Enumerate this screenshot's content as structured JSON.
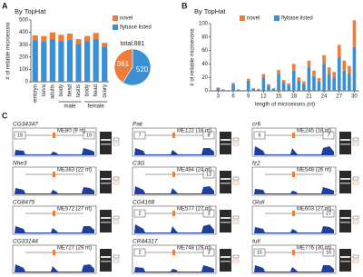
{
  "chart_data": [
    {
      "type": "bar",
      "panel": "A",
      "title": "By TopHat",
      "y_label": "# of reliable microexons",
      "categories": [
        "embryo",
        "larva",
        "adults",
        "body",
        "head",
        "testis",
        "body",
        "head",
        "ovary"
      ],
      "category_groups": [
        null,
        null,
        null,
        "male",
        "male",
        "male",
        "female",
        "female",
        "female"
      ],
      "series": [
        {
          "name": "novel",
          "color": "#f07c3c",
          "values": [
            40,
            45,
            55,
            50,
            50,
            40,
            40,
            50,
            30
          ]
        },
        {
          "name": "flybase listed",
          "color": "#3a8fd6",
          "values": [
            335,
            325,
            345,
            330,
            340,
            305,
            330,
            345,
            285
          ]
        }
      ],
      "stacked": true,
      "ylim": [
        0,
        500
      ],
      "yticks": [
        0,
        100,
        200,
        300,
        400,
        500
      ]
    },
    {
      "type": "pie",
      "title": "total:881",
      "values": [
        361,
        520
      ],
      "colors": [
        "#f07c3c",
        "#3a8fd6"
      ]
    },
    {
      "type": "bar",
      "panel": "B",
      "title": "By TopHat",
      "x_label": "length of microexons (nt)",
      "y_label": "# of reliable microexons",
      "x": [
        3,
        4,
        5,
        6,
        7,
        8,
        9,
        10,
        11,
        12,
        13,
        14,
        15,
        16,
        17,
        18,
        19,
        20,
        21,
        22,
        23,
        24,
        25,
        26,
        27,
        28,
        29,
        30
      ],
      "series": [
        {
          "name": "novel",
          "color": "#f07c3c",
          "values": [
            1,
            0,
            0,
            2,
            0,
            0,
            3,
            1,
            1,
            5,
            2,
            1,
            6,
            4,
            3,
            10,
            5,
            4,
            10,
            8,
            5,
            13,
            10,
            8,
            18,
            15,
            12,
            40
          ]
        },
        {
          "name": "flybase listed",
          "color": "#3a8fd6",
          "values": [
            4,
            2,
            1,
            10,
            2,
            1,
            15,
            3,
            2,
            20,
            8,
            3,
            25,
            12,
            8,
            30,
            15,
            10,
            35,
            22,
            14,
            40,
            25,
            20,
            50,
            30,
            25,
            65
          ]
        }
      ],
      "stacked": true,
      "xlim": [
        1.5,
        31
      ],
      "xticks": [
        3,
        6,
        9,
        12,
        15,
        18,
        21,
        24,
        27,
        30
      ],
      "ylim": [
        0,
        100
      ],
      "yticks": [
        0,
        20,
        40,
        60,
        80,
        100
      ]
    }
  ],
  "panel_c": {
    "label": "C",
    "tracks": [
      {
        "gene": "CG34347",
        "microexon": "ME80 (9 nt)",
        "exons": [
          18,
          19
        ]
      },
      {
        "gene": "Pak",
        "microexon": "ME122 (18 nt)",
        "exons": [
          7,
          8
        ]
      },
      {
        "gene": "cr6",
        "microexon": "ME245 (18 nt)",
        "exons": [
          6,
          7
        ]
      },
      {
        "gene": "Nhe3",
        "microexon": "ME383 (22 nt)",
        "exons": []
      },
      {
        "gene": "C3G",
        "microexon": "ME484 (24 nt)",
        "exons": [
          13
        ]
      },
      {
        "gene": "fz2",
        "microexon": "ME548 (26 nt)",
        "exons": []
      },
      {
        "gene": "CG8475",
        "microexon": "ME572 (27 nt)",
        "exons": []
      },
      {
        "gene": "CG4168",
        "microexon": "ME577 (27 nt)",
        "exons": [
          2,
          3
        ]
      },
      {
        "gene": "Glutl",
        "microexon": "ME603 (27 nt)",
        "exons": [
          27
        ]
      },
      {
        "gene": "CG33144",
        "microexon": "ME727 (29 nt)",
        "exons": []
      },
      {
        "gene": "CR44317",
        "microexon": "ME748 (29 nt)",
        "exons": [
          2,
          3
        ]
      },
      {
        "gene": "tutl",
        "microexon": "ME776 (30 nt)",
        "exons": [
          15,
          16
        ]
      }
    ]
  }
}
